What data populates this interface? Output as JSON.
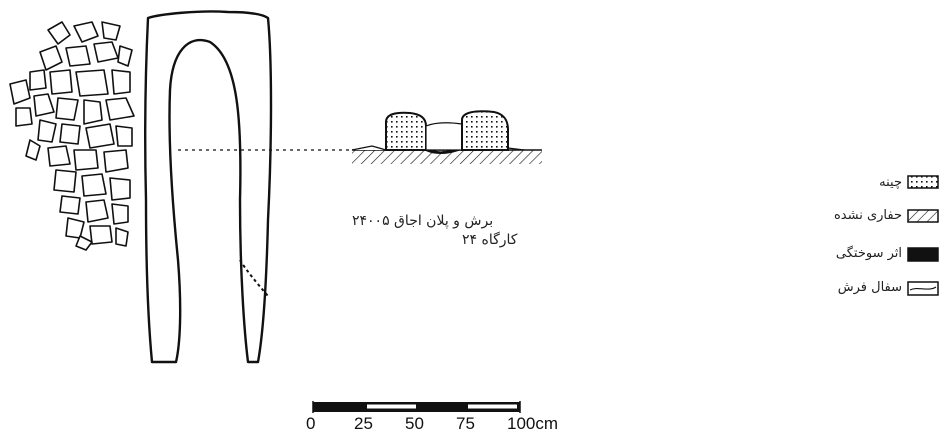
{
  "caption": {
    "line1": "برش و پلان اجاق ۲۴۰۰۵",
    "line2": "کارگاه ۲۴"
  },
  "legend": [
    {
      "key": "stone",
      "label": "چینه"
    },
    {
      "key": "unexcavated",
      "label": "حفاری نشده"
    },
    {
      "key": "burnt",
      "label": "اثر سوختگی"
    },
    {
      "key": "pottery-floor",
      "label": "سفال فرش"
    }
  ],
  "scale_bar": {
    "ticks": [
      "0",
      "25",
      "50",
      "75",
      "100cm"
    ]
  },
  "colors": {
    "ink": "#111111",
    "paper": "#ffffff"
  }
}
